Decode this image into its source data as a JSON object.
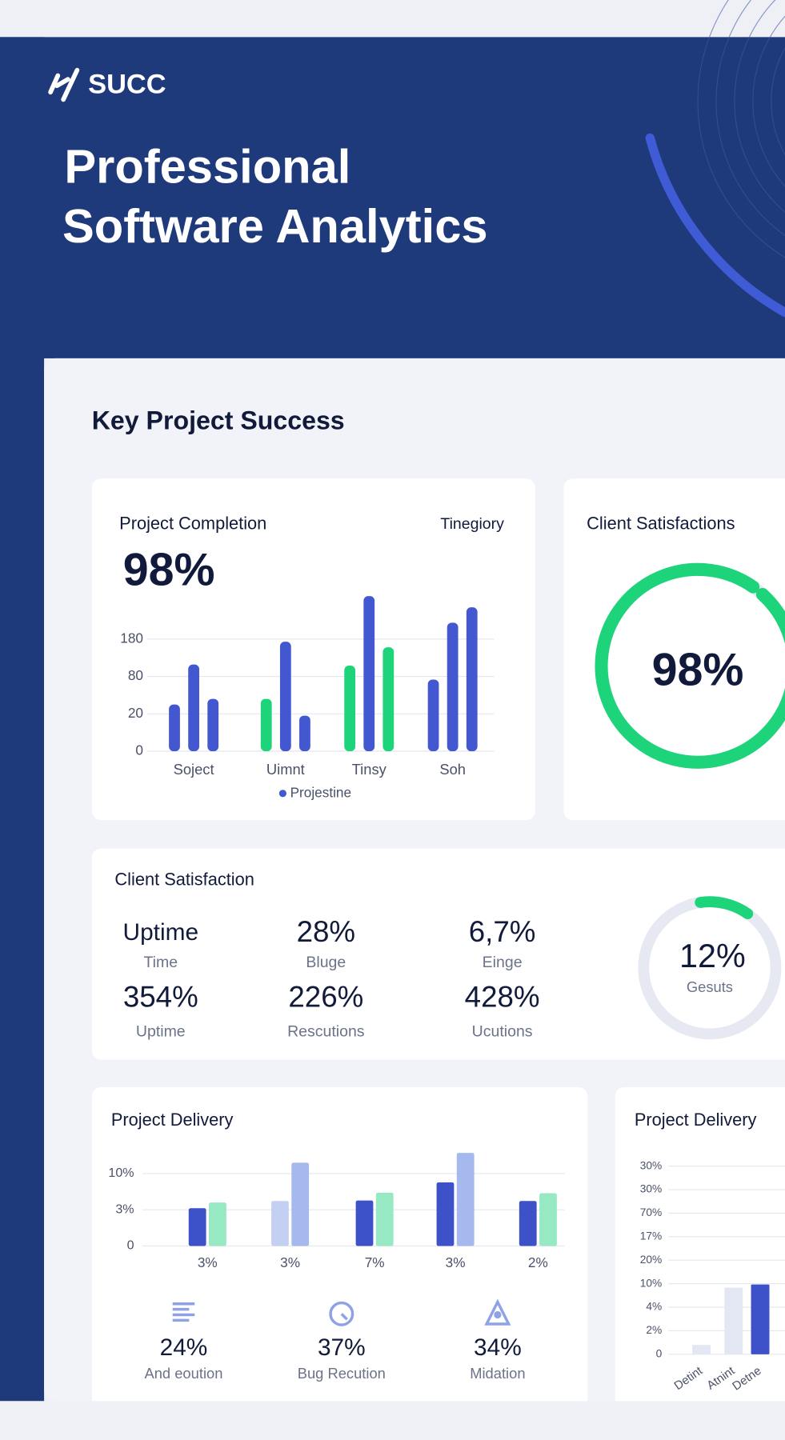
{
  "header": {
    "logo": "SUCC",
    "title_lines": [
      "Professional",
      "Software Analytics"
    ]
  },
  "section_title": "Key Project Success",
  "completion_card": {
    "title": "Project Completion",
    "tag": "Tinegiory",
    "headline": "98%",
    "chart": {
      "type": "bar",
      "yscale": "piecewise",
      "categories": [
        "Soject",
        "Uimnt",
        "Tinsy",
        "Soh"
      ],
      "groups": [
        {
          "values": [
            35,
            112,
            44
          ],
          "colors": [
            "#4257d0",
            "#4257d0",
            "#4257d0"
          ]
        },
        {
          "values": [
            44,
            173,
            19
          ],
          "colors": [
            "#1ed47a",
            "#4257d0",
            "#4257d0"
          ]
        },
        {
          "values": [
            109,
            295,
            158
          ],
          "colors": [
            "#1ed47a",
            "#4257d0",
            "#1ed47a"
          ]
        },
        {
          "values": [
            75,
            224,
            265
          ],
          "colors": [
            "#4257d0",
            "#4257d0",
            "#4257d0"
          ]
        }
      ],
      "ylim": [
        0,
        300
      ],
      "yticks": [
        0,
        20,
        80,
        180
      ],
      "grid": true,
      "legend": {
        "name": "Projestine",
        "color": "#4257d0"
      }
    }
  },
  "satisfaction_gauge": {
    "type": "gauge",
    "title": "Client Satisfactions",
    "value": 98,
    "value_label": "98%",
    "color": "#1ed47a"
  },
  "satisfaction_card": {
    "title": "Client Satisfaction",
    "stats": [
      {
        "value": "Uptime",
        "label": "Time"
      },
      {
        "value": "28%",
        "label": "Bluge"
      },
      {
        "value": "6,7%",
        "label": "Einge"
      },
      {
        "value": "354%",
        "label": "Uptime"
      },
      {
        "value": "226%",
        "label": "Rescutions"
      },
      {
        "value": "428%",
        "label": "Ucutions"
      }
    ],
    "gauge": {
      "type": "gauge",
      "value": 12,
      "value_label": "12%",
      "label": "Gesuts",
      "color": "#1ed47a"
    }
  },
  "delivery_card": {
    "title": "Project Delivery",
    "chart": {
      "type": "bar",
      "yscale": "piecewise",
      "categories": [
        "3%",
        "3%",
        "7%",
        "3%",
        "2%"
      ],
      "groups": [
        {
          "values": [
            3.3,
            4.4
          ],
          "colors": [
            "#3d52c9",
            "#96e9c2"
          ]
        },
        {
          "values": [
            4.7,
            12.1
          ],
          "colors": [
            "#c4d0f2",
            "#a6b9ee"
          ]
        },
        {
          "values": [
            4.8,
            6.3
          ],
          "colors": [
            "#3d52c9",
            "#96e9c2"
          ]
        },
        {
          "values": [
            8.3,
            14.0
          ],
          "colors": [
            "#3d52c9",
            "#a6b9ee"
          ]
        },
        {
          "values": [
            4.7,
            6.2
          ],
          "colors": [
            "#3d52c9",
            "#96e9c2"
          ]
        }
      ],
      "ylim": [
        0,
        15
      ],
      "yticks": [
        0,
        {
          "value": 3,
          "label": "3%"
        },
        {
          "value": 10,
          "label": "10%"
        }
      ],
      "grid": true
    },
    "stats": [
      {
        "value": "24%",
        "label": "And eoution"
      },
      {
        "value": "37%",
        "label": "Bug Recution"
      },
      {
        "value": "34%",
        "label": "Midation"
      }
    ]
  },
  "delivery_side_card": {
    "title": "Project Delivery",
    "chart": {
      "type": "bar",
      "yscale": "piecewise",
      "categories": [
        "Detint",
        "Atnint",
        "Detne"
      ],
      "groups": [
        {
          "values": [
            0.8
          ],
          "colors": [
            "#e3e7f3"
          ]
        },
        {
          "values": [
            9.0
          ],
          "colors": [
            "#e3e7f3"
          ]
        },
        {
          "values": [
            9.8
          ],
          "colors": [
            "#3d52c9"
          ]
        }
      ],
      "ylim": [
        0,
        30
      ],
      "yticks": [
        0,
        {
          "value": 2,
          "label": "2%"
        },
        {
          "value": 4,
          "label": "4%"
        },
        {
          "value": 10,
          "label": "10%"
        },
        {
          "value": 20,
          "label": "20%"
        },
        {
          "value": 17,
          "label": "17%"
        },
        {
          "value": 70,
          "label": "70%"
        },
        {
          "value": 30,
          "label": "30%"
        },
        {
          "value": 30,
          "label": "30%"
        }
      ],
      "grid": true
    }
  }
}
